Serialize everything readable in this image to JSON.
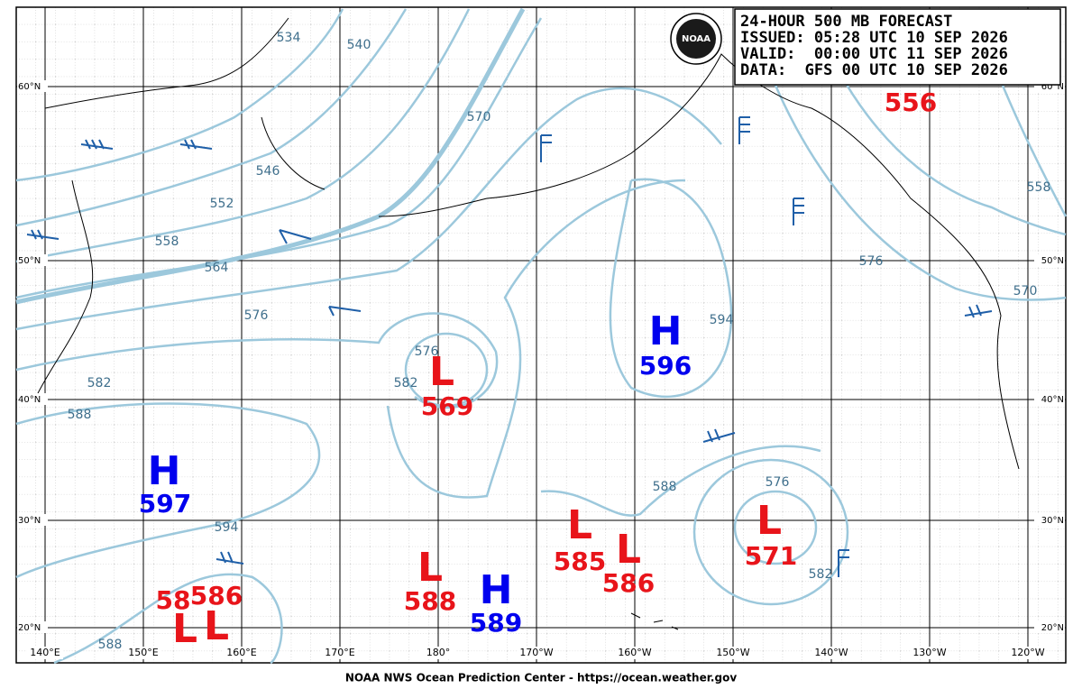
{
  "header": {
    "lines": [
      "24-HOUR 500 MB FORECAST",
      "ISSUED: 05:28 UTC 10 SEP 2026",
      "VALID:  00:00 UTC 11 SEP 2026",
      "DATA:  GFS 00 UTC 10 SEP 2026"
    ]
  },
  "logo": "NOAA",
  "footer": "NOAA NWS Ocean Prediction Center - https://ocean.weather.gov",
  "latitudes": [
    "60°N",
    "50°N",
    "40°N",
    "30°N",
    "20°N"
  ],
  "longitudes": [
    "140°E",
    "150°E",
    "160°E",
    "170°E",
    "180°",
    "170°W",
    "160°W",
    "150°W",
    "140°W",
    "130°W",
    "120°W"
  ],
  "centers": [
    {
      "symbol": "H",
      "value": 597
    },
    {
      "symbol": "L",
      "value": 569
    },
    {
      "symbol": "H",
      "value": 596
    },
    {
      "symbol": "L",
      "value": 585
    },
    {
      "symbol": "L",
      "value": 586
    },
    {
      "symbol": "L",
      "value": 571
    },
    {
      "symbol": "L",
      "value": 588
    },
    {
      "symbol": "H",
      "value": 589
    },
    {
      "symbol": "L",
      "value": 586
    },
    {
      "symbol": "L",
      "value": "58"
    }
  ],
  "extra_values": [
    556
  ],
  "contour_labels": [
    534,
    540,
    546,
    552,
    558,
    564,
    570,
    576,
    576,
    582,
    582,
    588,
    594,
    588,
    576,
    594,
    588,
    576,
    582,
    558,
    570
  ]
}
